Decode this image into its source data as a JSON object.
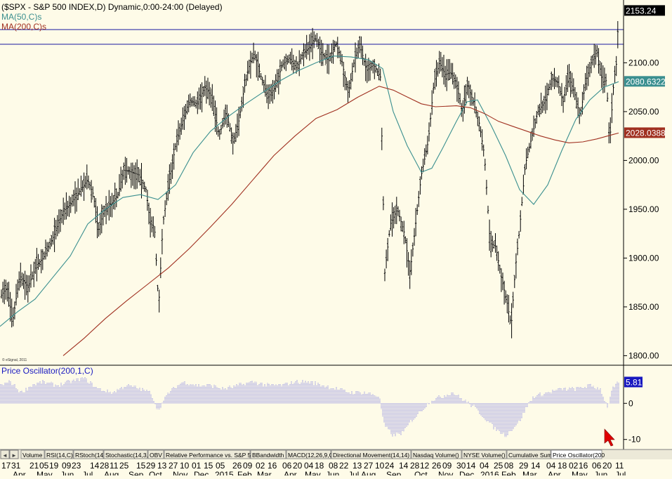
{
  "window": {
    "accent_colors": {
      "background": "#fefbe8",
      "frame": "#000000",
      "level_line": "#1a1aa0"
    }
  },
  "chart_data": [
    {
      "type": "line",
      "title": "($SPX - S&P 500 INDEX,D) Dynamic,0:00-24:00 (Delayed)",
      "copyright": "© eSignal, 2011",
      "ylim": [
        1800,
        2160
      ],
      "ytick_labels": [
        "1800.00",
        "1850.00",
        "1900.00",
        "1950.00",
        "2000.00",
        "2050.00",
        "2100.00"
      ],
      "ytick_values": [
        1800,
        1850,
        1900,
        1950,
        2000,
        2050,
        2100
      ],
      "price_tags": [
        {
          "value": 2153.24,
          "label": "2153.24",
          "color": "#000000"
        },
        {
          "value": 2080.6322,
          "label": "2080.6322",
          "color": "#3a8f8f"
        },
        {
          "value": 2028.0388,
          "label": "2028.0388",
          "color": "#a03020"
        }
      ],
      "horizontal_lines": [
        2134,
        2119
      ],
      "series": [
        {
          "name": "$SPX",
          "style": "ohlc-bars",
          "color": "#000000",
          "anchors": [
            [
              0,
              1860
            ],
            [
              10,
              1870
            ],
            [
              18,
              1835
            ],
            [
              28,
              1882
            ],
            [
              40,
              1870
            ],
            [
              52,
              1893
            ],
            [
              62,
              1900
            ],
            [
              78,
              1925
            ],
            [
              90,
              1948
            ],
            [
              100,
              1955
            ],
            [
              113,
              1968
            ],
            [
              125,
              1980
            ],
            [
              133,
              1965
            ],
            [
              140,
              1928
            ],
            [
              148,
              1948
            ],
            [
              158,
              1955
            ],
            [
              168,
              1965
            ],
            [
              176,
              1990
            ],
            [
              188,
              1988
            ],
            [
              198,
              1985
            ],
            [
              208,
              1970
            ],
            [
              214,
              1935
            ],
            [
              220,
              1932
            ],
            [
              226,
              1850
            ],
            [
              232,
              1935
            ],
            [
              240,
              1975
            ],
            [
              250,
              2015
            ],
            [
              260,
              2040
            ],
            [
              270,
              2062
            ],
            [
              280,
              2058
            ],
            [
              292,
              2075
            ],
            [
              302,
              2065
            ],
            [
              312,
              2025
            ],
            [
              322,
              2050
            ],
            [
              332,
              2018
            ],
            [
              340,
              2040
            ],
            [
              348,
              2075
            ],
            [
              356,
              2100
            ],
            [
              362,
              2110
            ],
            [
              372,
              2085
            ],
            [
              382,
              2065
            ],
            [
              392,
              2075
            ],
            [
              402,
              2098
            ],
            [
              412,
              2105
            ],
            [
              422,
              2095
            ],
            [
              432,
              2110
            ],
            [
              440,
              2115
            ],
            [
              450,
              2125
            ],
            [
              458,
              2110
            ],
            [
              468,
              2102
            ],
            [
              478,
              2120
            ],
            [
              486,
              2105
            ],
            [
              496,
              2068
            ],
            [
              504,
              2100
            ],
            [
              512,
              2120
            ],
            [
              522,
              2092
            ],
            [
              532,
              2098
            ],
            [
              542,
              2085
            ],
            [
              548,
              1885
            ],
            [
              556,
              1935
            ],
            [
              566,
              1950
            ],
            [
              576,
              1925
            ],
            [
              584,
              1885
            ],
            [
              592,
              1935
            ],
            [
              600,
              1985
            ],
            [
              610,
              2020
            ],
            [
              618,
              2080
            ],
            [
              626,
              2100
            ],
            [
              634,
              2088
            ],
            [
              642,
              2090
            ],
            [
              650,
              2080
            ],
            [
              658,
              2050
            ],
            [
              666,
              2078
            ],
            [
              674,
              2060
            ],
            [
              682,
              2040
            ],
            [
              690,
              2005
            ],
            [
              698,
              1915
            ],
            [
              706,
              1912
            ],
            [
              714,
              1880
            ],
            [
              722,
              1855
            ],
            [
              728,
              1830
            ],
            [
              734,
              1890
            ],
            [
              740,
              1930
            ],
            [
              748,
              1995
            ],
            [
              756,
              2020
            ],
            [
              766,
              2050
            ],
            [
              776,
              2060
            ],
            [
              786,
              2085
            ],
            [
              794,
              2080
            ],
            [
              802,
              2060
            ],
            [
              810,
              2085
            ],
            [
              818,
              2070
            ],
            [
              826,
              2045
            ],
            [
              834,
              2080
            ],
            [
              842,
              2100
            ],
            [
              850,
              2112
            ],
            [
              858,
              2080
            ],
            [
              864,
              2082
            ],
            [
              868,
              2015
            ],
            [
              874,
              2080
            ],
            [
              878,
              2100
            ],
            [
              881,
              2153
            ]
          ]
        },
        {
          "name": "MA(50,C)s",
          "style": "line",
          "color": "#3a8f8f",
          "anchors": [
            [
              0,
              1830
            ],
            [
              25,
              1845
            ],
            [
              50,
              1858
            ],
            [
              75,
              1880
            ],
            [
              100,
              1902
            ],
            [
              125,
              1935
            ],
            [
              150,
              1950
            ],
            [
              175,
              1962
            ],
            [
              200,
              1965
            ],
            [
              225,
              1960
            ],
            [
              250,
              1975
            ],
            [
              275,
              2008
            ],
            [
              300,
              2030
            ],
            [
              325,
              2045
            ],
            [
              350,
              2058
            ],
            [
              375,
              2070
            ],
            [
              400,
              2082
            ],
            [
              425,
              2092
            ],
            [
              450,
              2100
            ],
            [
              475,
              2107
            ],
            [
              500,
              2106
            ],
            [
              525,
              2103
            ],
            [
              545,
              2094
            ],
            [
              560,
              2050
            ],
            [
              580,
              2015
            ],
            [
              600,
              1988
            ],
            [
              615,
              1992
            ],
            [
              630,
              2012
            ],
            [
              650,
              2040
            ],
            [
              665,
              2060
            ],
            [
              680,
              2062
            ],
            [
              700,
              2035
            ],
            [
              720,
              2005
            ],
            [
              740,
              1970
            ],
            [
              760,
              1955
            ],
            [
              780,
              1975
            ],
            [
              800,
              2010
            ],
            [
              820,
              2042
            ],
            [
              840,
              2062
            ],
            [
              860,
              2075
            ],
            [
              881,
              2080.6322
            ]
          ]
        },
        {
          "name": "MA(200,C)s",
          "style": "line",
          "color": "#a03020",
          "anchors": [
            [
              90,
              1800
            ],
            [
              120,
              1818
            ],
            [
              150,
              1838
            ],
            [
              180,
              1856
            ],
            [
              210,
              1873
            ],
            [
              240,
              1890
            ],
            [
              270,
              1910
            ],
            [
              300,
              1932
            ],
            [
              330,
              1955
            ],
            [
              360,
              1980
            ],
            [
              390,
              2005
            ],
            [
              420,
              2025
            ],
            [
              450,
              2043
            ],
            [
              480,
              2052
            ],
            [
              510,
              2065
            ],
            [
              540,
              2076
            ],
            [
              560,
              2072
            ],
            [
              580,
              2065
            ],
            [
              600,
              2058
            ],
            [
              620,
              2055
            ],
            [
              650,
              2056
            ],
            [
              670,
              2054
            ],
            [
              690,
              2048
            ],
            [
              710,
              2040
            ],
            [
              730,
              2035
            ],
            [
              750,
              2030
            ],
            [
              770,
              2025
            ],
            [
              790,
              2021
            ],
            [
              810,
              2018
            ],
            [
              830,
              2019
            ],
            [
              850,
              2022
            ],
            [
              870,
              2026
            ],
            [
              881,
              2028.0388
            ]
          ]
        }
      ]
    },
    {
      "type": "bar",
      "title": "Price Oscillator(200,1,C)",
      "ylim": [
        -12,
        9
      ],
      "ytick_labels": [
        "0",
        "-10"
      ],
      "ytick_values": [
        0,
        -10
      ],
      "price_tags": [
        {
          "value": 5.81,
          "label": "5.81",
          "color": "#1818c0"
        }
      ],
      "color": "#6a6ae0",
      "series_anchors": [
        [
          0,
          5
        ],
        [
          15,
          6
        ],
        [
          30,
          3
        ],
        [
          45,
          5
        ],
        [
          60,
          6
        ],
        [
          80,
          5
        ],
        [
          100,
          6
        ],
        [
          120,
          7
        ],
        [
          140,
          4
        ],
        [
          160,
          3
        ],
        [
          180,
          5
        ],
        [
          200,
          4
        ],
        [
          215,
          3
        ],
        [
          225,
          -2
        ],
        [
          240,
          3
        ],
        [
          260,
          6
        ],
        [
          280,
          5
        ],
        [
          300,
          5
        ],
        [
          320,
          4
        ],
        [
          340,
          5
        ],
        [
          360,
          6
        ],
        [
          380,
          5
        ],
        [
          400,
          5
        ],
        [
          420,
          6
        ],
        [
          440,
          6
        ],
        [
          460,
          5
        ],
        [
          480,
          4
        ],
        [
          500,
          3
        ],
        [
          520,
          3
        ],
        [
          540,
          2
        ],
        [
          547,
          -6
        ],
        [
          560,
          -9
        ],
        [
          575,
          -8
        ],
        [
          585,
          -5
        ],
        [
          600,
          -2
        ],
        [
          615,
          1
        ],
        [
          630,
          2
        ],
        [
          645,
          3
        ],
        [
          660,
          1
        ],
        [
          675,
          -1
        ],
        [
          690,
          -4
        ],
        [
          705,
          -7
        ],
        [
          720,
          -9
        ],
        [
          730,
          -7
        ],
        [
          740,
          -5
        ],
        [
          750,
          -1
        ],
        [
          760,
          2
        ],
        [
          780,
          3
        ],
        [
          800,
          4
        ],
        [
          820,
          4
        ],
        [
          840,
          5
        ],
        [
          855,
          4
        ],
        [
          865,
          -1
        ],
        [
          872,
          4
        ],
        [
          881,
          5.81
        ]
      ]
    }
  ],
  "timeline": {
    "day_labels": [
      "17",
      "31",
      "21",
      "05",
      "19",
      "09",
      "23",
      "14",
      "28",
      "11",
      "25",
      "15",
      "29",
      "13",
      "27",
      "10",
      "01",
      "15",
      "05",
      "26",
      "09",
      "02",
      "16",
      "06",
      "20",
      "04",
      "18",
      "08",
      "22",
      "13",
      "27",
      "10",
      "24",
      "14",
      "28",
      "12",
      "26",
      "09",
      "30",
      "14",
      "04",
      "25",
      "08",
      "29",
      "14",
      "04",
      "18",
      "02",
      "16",
      "06",
      "20",
      "11"
    ],
    "month_labels": [
      "Apr",
      "May",
      "Jun",
      "Jul",
      "Aug",
      "Sep",
      "Oct",
      "Nov",
      "Dec",
      "2015",
      "Feb",
      "Mar",
      "Apr",
      "May",
      "Jun",
      "Jul",
      "Aug",
      "Sep",
      "Oct",
      "Nov",
      "Dec",
      "2016",
      "Feb",
      "Mar",
      "Apr",
      "May",
      "Jun",
      "Jul"
    ]
  },
  "tabs": [
    "Volume",
    "RSI(14,C)",
    "RStoch(14)",
    "Stochastic(14,3,3)",
    "OBV",
    "Relative Performance vs. S&P 500",
    "BBandwidth",
    "MACD(12,26,9,C)",
    "Directional Movement(14,14)",
    "Nasdaq Volume()",
    "NYSE Volume()",
    "Cumulative Sum",
    "Price Oscillator(200"
  ],
  "tab_scroll": {
    "left": "◄",
    "right": "►"
  },
  "legend": [
    {
      "label": "MA(50,C)s",
      "color": "#3a8f8f"
    },
    {
      "label": "MA(200,C)s",
      "color": "#a03020"
    }
  ],
  "cursor": {
    "icon": "mouse-pointer-icon",
    "color": "#e00000"
  }
}
